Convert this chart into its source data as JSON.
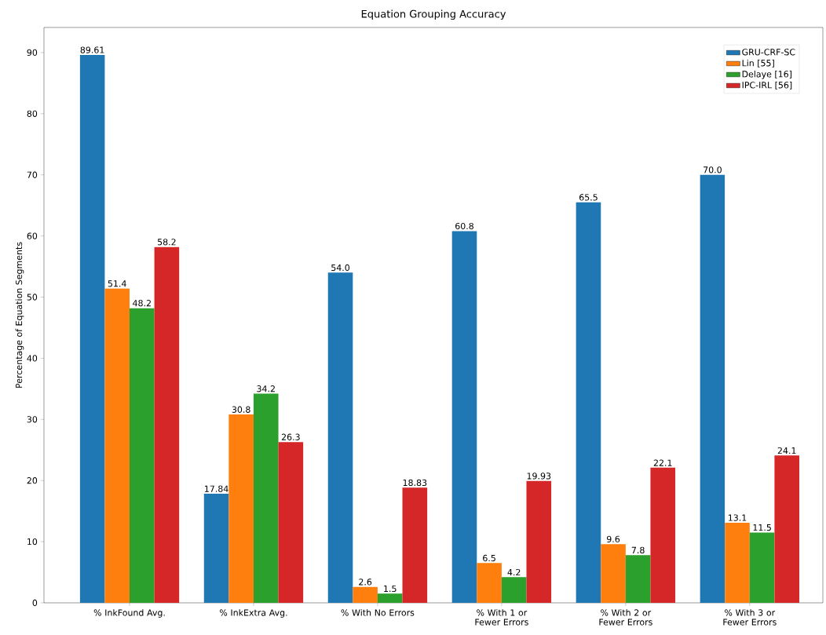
{
  "chart_data": {
    "type": "bar",
    "title": "Equation Grouping Accuracy",
    "ylabel": "Percentage of Equation Segments",
    "categories": [
      "% InkFound Avg.",
      "% InkExtra Avg.",
      "% With No Errors",
      "% With 1 or Fewer Errors",
      "% With 2 or Fewer Errors",
      "% With 3 or Fewer Errors"
    ],
    "series": [
      {
        "name": "GRU-CRF-SC",
        "color": "#1f77b4",
        "values": [
          89.61,
          17.84,
          54.0,
          60.8,
          65.5,
          70.0
        ],
        "value_labels": [
          "89.61",
          "17.84",
          "54.0",
          "60.8",
          "65.5",
          "70.0"
        ]
      },
      {
        "name": "Lin [55]",
        "color": "#ff7f0e",
        "values": [
          51.4,
          30.8,
          2.6,
          6.5,
          9.6,
          13.1
        ],
        "value_labels": [
          "51.4",
          "30.8",
          "2.6",
          "6.5",
          "9.6",
          "13.1"
        ]
      },
      {
        "name": "Delaye [16]",
        "color": "#2ca02c",
        "values": [
          48.2,
          34.2,
          1.5,
          4.2,
          7.8,
          11.5
        ],
        "value_labels": [
          "48.2",
          "34.2",
          "1.5",
          "4.2",
          "7.8",
          "11.5"
        ]
      },
      {
        "name": "IPC-IRL [56]",
        "color": "#d62728",
        "values": [
          58.2,
          26.3,
          18.83,
          19.93,
          22.1,
          24.1
        ],
        "value_labels": [
          "58.2",
          "26.3",
          "18.83",
          "19.93",
          "22.1",
          "24.1"
        ]
      }
    ],
    "ylim": [
      0,
      94.1
    ],
    "yticks": [
      0,
      10,
      20,
      30,
      40,
      50,
      60,
      70,
      80,
      90
    ],
    "legend": "top right",
    "grid": false
  }
}
